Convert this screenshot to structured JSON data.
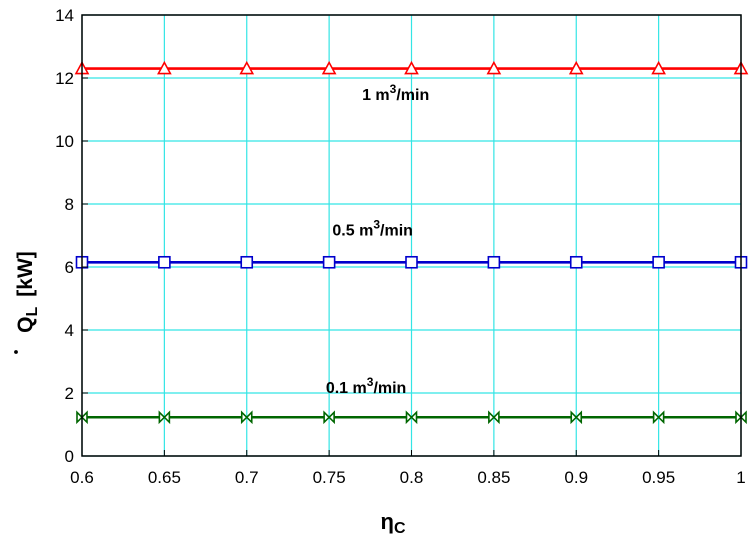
{
  "chart_data": {
    "type": "line",
    "x": [
      0.6,
      0.65,
      0.7,
      0.75,
      0.8,
      0.85,
      0.9,
      0.95,
      1
    ],
    "xlim": [
      0.6,
      1
    ],
    "ylim": [
      0,
      14
    ],
    "x_ticks": [
      "0.6",
      "0.65",
      "0.7",
      "0.75",
      "0.8",
      "0.85",
      "0.9",
      "0.95",
      "1"
    ],
    "y_ticks": [
      "0",
      "2",
      "4",
      "6",
      "8",
      "10",
      "12",
      "14"
    ],
    "xlabel": {
      "main": "η",
      "sub": "C"
    },
    "ylabel": {
      "main": "Q",
      "sub": "L",
      "unit": "[kW]"
    },
    "grid": true,
    "grid_color": "#33e5e5",
    "series": [
      {
        "name": "1 m³/min",
        "label_main": "1 m",
        "label_sup": "3",
        "label_tail": "/min",
        "color": "#ff0000",
        "marker": "triangle",
        "values": [
          12.3,
          12.3,
          12.3,
          12.3,
          12.3,
          12.3,
          12.3,
          12.3,
          12.3
        ],
        "label_at": {
          "x": 0.77,
          "y": 11.3
        }
      },
      {
        "name": "0.5 m³/min",
        "label_main": "0.5 m",
        "label_sup": "3",
        "label_tail": "/min",
        "color": "#0000cc",
        "marker": "square",
        "values": [
          6.15,
          6.15,
          6.15,
          6.15,
          6.15,
          6.15,
          6.15,
          6.15,
          6.15
        ],
        "label_at": {
          "x": 0.752,
          "y": 7.0
        }
      },
      {
        "name": "0.1 m³/min",
        "label_main": "0.1 m",
        "label_sup": "3",
        "label_tail": "/min",
        "color": "#006600",
        "marker": "bowtie",
        "values": [
          1.23,
          1.23,
          1.23,
          1.23,
          1.23,
          1.23,
          1.23,
          1.23,
          1.23
        ],
        "label_at": {
          "x": 0.748,
          "y": 2.0
        }
      }
    ]
  }
}
